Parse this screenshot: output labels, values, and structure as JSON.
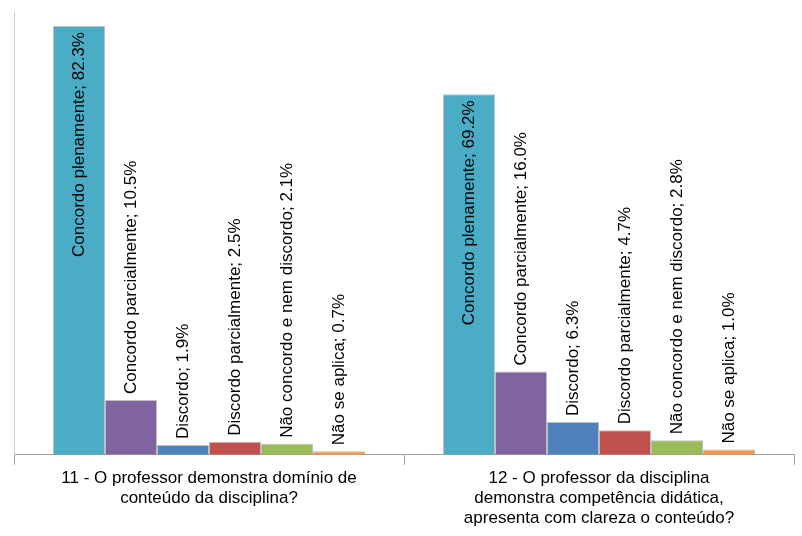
{
  "chart_data": {
    "type": "bar",
    "categories": [
      "11 - O professor demonstra domínio de conteúdo da disciplina?",
      "12 - O professor da disciplina demonstra competência didática, apresenta com clareza o conteúdo?"
    ],
    "series": [
      {
        "name": "Concordo plenamente",
        "color": "#4bacc6",
        "values": [
          82.3,
          69.2
        ],
        "value_labels": [
          "Concordo plenamente; 82.3%",
          "Concordo plenamente; 69.2%"
        ]
      },
      {
        "name": "Concordo parcialmente",
        "color": "#8064a2",
        "values": [
          10.5,
          16.0
        ],
        "value_labels": [
          "Concordo parcialmente; 10.5%",
          "Concordo parcialmente; 16.0%"
        ]
      },
      {
        "name": "Discordo",
        "color": "#4f81bd",
        "values": [
          1.9,
          6.3
        ],
        "value_labels": [
          "Discordo; 1.9%",
          "Discordo; 6.3%"
        ]
      },
      {
        "name": "Discordo parcialmente",
        "color": "#c0504d",
        "values": [
          2.5,
          4.7
        ],
        "value_labels": [
          "Discordo parcialmente; 2.5%",
          "Discordo parcialmente; 4.7%"
        ]
      },
      {
        "name": "Não concordo e nem discordo",
        "color": "#9bbb59",
        "values": [
          2.1,
          2.8
        ],
        "value_labels": [
          "Não concordo e nem discordo; 2.1%",
          "Não concordo e nem discordo; 2.8%"
        ]
      },
      {
        "name": "Não se aplica",
        "color": "#f79646",
        "values": [
          0.7,
          1.0
        ],
        "value_labels": [
          "Não se aplica; 0.7%",
          "Não se aplica; 1.0%"
        ]
      }
    ],
    "ylim": [
      0,
      85
    ],
    "grid": false,
    "data_labels": true,
    "tick_labels": "x"
  }
}
